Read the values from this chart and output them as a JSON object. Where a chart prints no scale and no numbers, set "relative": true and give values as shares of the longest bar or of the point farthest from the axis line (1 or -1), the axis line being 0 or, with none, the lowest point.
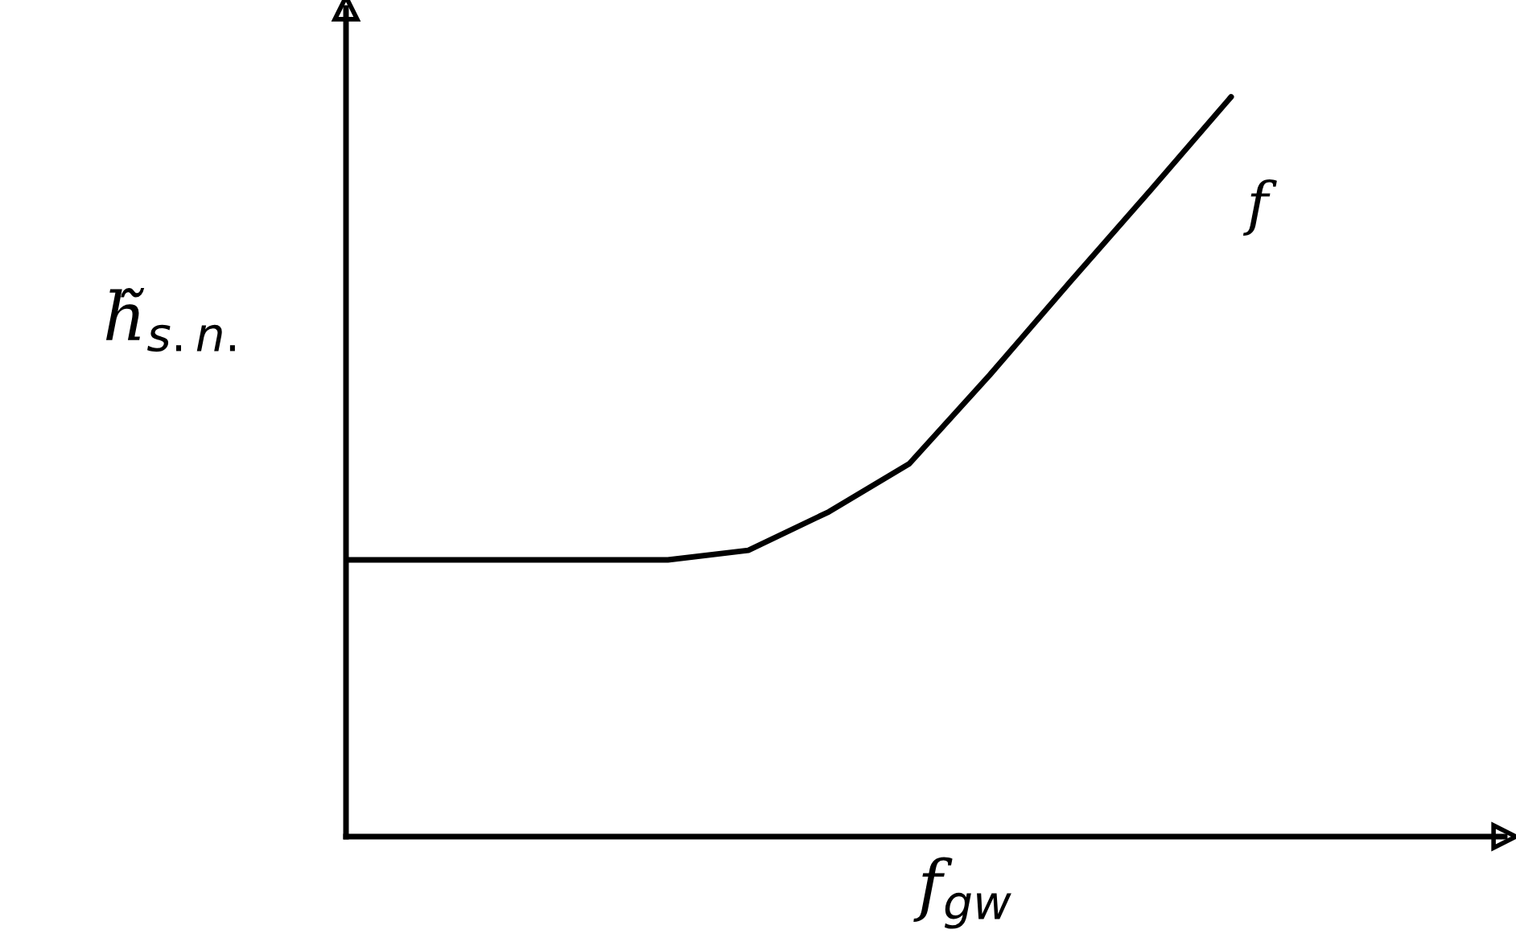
{
  "chart_data": {
    "type": "line",
    "relative": true,
    "categories": [
      null,
      null,
      null,
      null,
      null,
      null,
      null,
      null,
      null,
      null,
      null,
      null
    ],
    "series": [
      {
        "color": "#000000",
        "values": [
          0.374,
          0.374,
          0.374,
          0.374,
          0.374,
          0.387,
          0.439,
          0.504,
          0.624,
          0.75,
          0.874,
          1.0
        ]
      }
    ],
    "xlabel": "f$_{gw}$",
    "ylabel": "h̃$_{s.n.}$",
    "annotations": [
      "f"
    ],
    "grid": false,
    "legend": false,
    "marker": "none",
    "line_style": "solid"
  }
}
